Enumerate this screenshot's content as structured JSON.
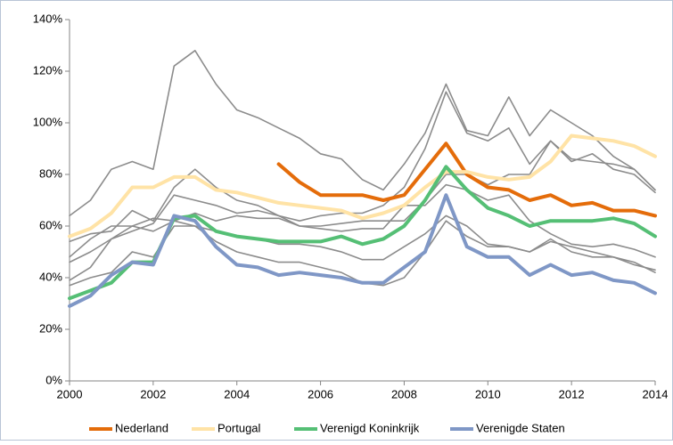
{
  "chart_data": {
    "type": "line",
    "x": [
      2000,
      2000.5,
      2001,
      2001.5,
      2002,
      2002.5,
      2003,
      2003.5,
      2004,
      2004.5,
      2005,
      2005.5,
      2006,
      2006.5,
      2007,
      2007.5,
      2008,
      2008.5,
      2009,
      2009.5,
      2010,
      2010.5,
      2011,
      2011.5,
      2012,
      2012.5,
      2013,
      2013.5,
      2014
    ],
    "xlim": [
      2000,
      2014
    ],
    "xticks": [
      2000,
      2002,
      2004,
      2006,
      2008,
      2010,
      2012,
      2014
    ],
    "ylim": [
      0,
      140
    ],
    "yticks": [
      {
        "value": 0,
        "label": "0%"
      },
      {
        "value": 20,
        "label": "20%"
      },
      {
        "value": 40,
        "label": "40%"
      },
      {
        "value": 60,
        "label": "60%"
      },
      {
        "value": 80,
        "label": "80%"
      },
      {
        "value": 100,
        "label": "100%"
      },
      {
        "value": 120,
        "label": "120%"
      },
      {
        "value": 140,
        "label": "140%"
      }
    ],
    "grid": false,
    "legend": "bottom",
    "series": [
      {
        "color": "#8c8c8c",
        "values": [
          64,
          70,
          82,
          85,
          82,
          122,
          128,
          115,
          105,
          102,
          98,
          94,
          88,
          86,
          78,
          74,
          84,
          96,
          115,
          97,
          95,
          110,
          95,
          105,
          100,
          95,
          87,
          82,
          74
        ]
      },
      {
        "color": "#8c8c8c",
        "values": [
          54,
          57,
          58,
          66,
          62,
          75,
          82,
          75,
          70,
          68,
          64,
          62,
          64,
          65,
          65,
          68,
          75,
          90,
          112,
          96,
          93,
          98,
          84,
          93,
          85,
          88,
          82,
          80,
          73
        ]
      },
      {
        "color": "#8c8c8c",
        "values": [
          46,
          50,
          55,
          58,
          61,
          72,
          70,
          68,
          65,
          66,
          64,
          60,
          60,
          61,
          62,
          62,
          62,
          70,
          80,
          80,
          76,
          80,
          80,
          93,
          86,
          85,
          84,
          82,
          74
        ]
      },
      {
        "color": "#8c8c8c",
        "values": [
          39,
          44,
          55,
          60,
          63,
          62,
          65,
          62,
          64,
          63,
          63,
          60,
          59,
          58,
          59,
          59,
          68,
          68,
          76,
          74,
          70,
          72,
          62,
          57,
          53,
          52,
          53,
          51,
          48
        ]
      },
      {
        "color": "#8c8c8c",
        "values": [
          48,
          55,
          60,
          60,
          58,
          62,
          60,
          58,
          56,
          55,
          53,
          53,
          52,
          50,
          47,
          47,
          52,
          57,
          64,
          60,
          53,
          52,
          50,
          55,
          50,
          48,
          48,
          45,
          43
        ]
      },
      {
        "color": "#8c8c8c",
        "values": [
          37,
          40,
          42,
          50,
          48,
          60,
          60,
          54,
          50,
          48,
          46,
          46,
          44,
          42,
          38,
          37,
          40,
          50,
          62,
          56,
          52,
          52,
          50,
          54,
          52,
          50,
          48,
          46,
          42
        ]
      },
      {
        "name": "Nederland",
        "color": "#e46c0a",
        "values": [
          null,
          null,
          null,
          null,
          null,
          null,
          null,
          null,
          null,
          null,
          84,
          77,
          72,
          72,
          72,
          70,
          72,
          82,
          92,
          80,
          75,
          74,
          70,
          72,
          68,
          69,
          66,
          66,
          64
        ]
      },
      {
        "name": "Portugal",
        "color": "#ffe3a6",
        "values": [
          56,
          59,
          65,
          75,
          75,
          79,
          79,
          74,
          73,
          71,
          69,
          68,
          67,
          66,
          63,
          65,
          68,
          75,
          81,
          81,
          79,
          78,
          79,
          85,
          95,
          94,
          93,
          91,
          87
        ]
      },
      {
        "name": "Verenigd Koninkrijk",
        "color": "#55bf75",
        "values": [
          32,
          35,
          38,
          46,
          46,
          63,
          64,
          58,
          56,
          55,
          54,
          54,
          54,
          56,
          53,
          55,
          60,
          70,
          83,
          74,
          67,
          64,
          60,
          62,
          62,
          62,
          63,
          61,
          56
        ]
      },
      {
        "name": "Verenigde Staten",
        "color": "#7f97c6",
        "values": [
          29,
          33,
          41,
          46,
          45,
          64,
          62,
          52,
          45,
          44,
          41,
          42,
          41,
          40,
          38,
          38,
          44,
          50,
          72,
          52,
          48,
          48,
          41,
          45,
          41,
          42,
          39,
          38,
          34
        ]
      }
    ]
  }
}
